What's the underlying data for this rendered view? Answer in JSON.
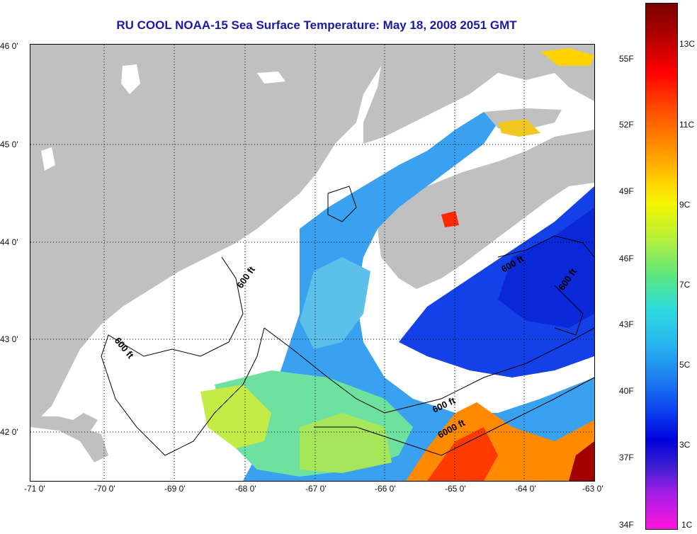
{
  "title": "RU COOL  NOAA-15  Sea Surface Temperature:  May 18, 2008 2051 GMT",
  "latitude_labels": [
    "46 0'",
    "45 0'",
    "44 0'",
    "43 0'",
    "42 0'"
  ],
  "longitude_labels": [
    "-71 0'",
    "-70 0'",
    "-69 0'",
    "-68 0'",
    "-67 0'",
    "-66 0'",
    "-65 0'",
    "-64 0'",
    "-63 0'"
  ],
  "contour_labels": [
    "600 ft",
    "600 ft",
    "600 ft",
    "600 ft",
    "600 ft",
    "6000 ft"
  ],
  "colorbar": {
    "fahrenheit": [
      "55F",
      "52F",
      "49F",
      "46F",
      "43F",
      "40F",
      "37F",
      "34F"
    ],
    "celsius": [
      "13C",
      "11C",
      "9C",
      "7C",
      "5C",
      "3C",
      "1C"
    ]
  },
  "colors": {
    "land": "#c0c0c0",
    "cloud": "#ffffff",
    "title": "#1a1aa6",
    "gulf_water": "#3aa0f0",
    "scotian_water": "#1440e8",
    "warm_water": "#ff6a00",
    "shelf_water": "#b4ea46"
  }
}
